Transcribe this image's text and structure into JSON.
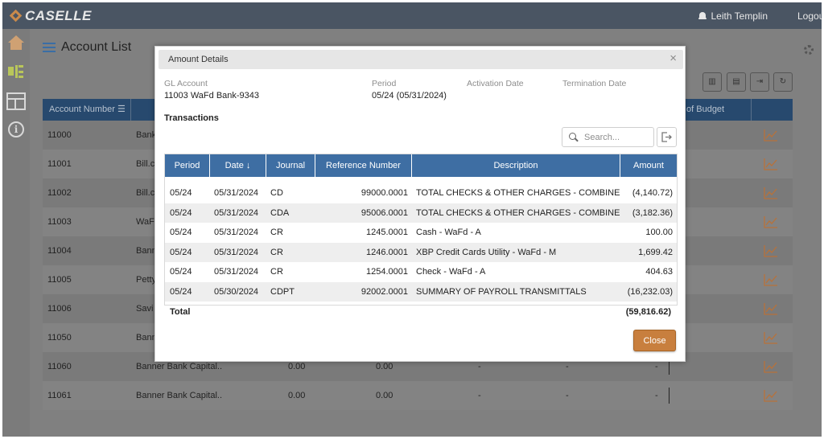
{
  "app": {
    "brand": "CASELLE",
    "user_name": "Leith Templin",
    "logout_label": "Logout"
  },
  "page": {
    "title": "Account List"
  },
  "background_table": {
    "header_first": "Account Number",
    "header_budget": "hart of Budget",
    "rows": [
      {
        "account": "11000",
        "name": "Bank",
        "v1": "",
        "v2": "",
        "d1": "",
        "d2": "",
        "d3": ""
      },
      {
        "account": "11001",
        "name": "Bill.c",
        "v1": "",
        "v2": "",
        "d1": "",
        "d2": "",
        "d3": ""
      },
      {
        "account": "11002",
        "name": "Bill.c",
        "v1": "",
        "v2": "",
        "d1": "",
        "d2": "",
        "d3": ""
      },
      {
        "account": "11003",
        "name": "WaFd",
        "v1": "",
        "v2": "",
        "d1": "",
        "d2": "",
        "d3": ""
      },
      {
        "account": "11004",
        "name": "Bann",
        "v1": "",
        "v2": "",
        "d1": "",
        "d2": "",
        "d3": ""
      },
      {
        "account": "11005",
        "name": "Petty",
        "v1": "",
        "v2": "",
        "d1": "",
        "d2": "",
        "d3": ""
      },
      {
        "account": "11006",
        "name": "Savi",
        "v1": "",
        "v2": "",
        "d1": "",
        "d2": "",
        "d3": ""
      },
      {
        "account": "11050",
        "name": "Bann",
        "v1": "",
        "v2": "",
        "d1": "",
        "d2": "",
        "d3": ""
      },
      {
        "account": "11060",
        "name": "Banner Bank Capital...",
        "v1": "0.00",
        "v2": "0.00",
        "d1": "-",
        "d2": "-",
        "d3": "-"
      },
      {
        "account": "11061",
        "name": "Banner Bank Capital...",
        "v1": "0.00",
        "v2": "0.00",
        "d1": "-",
        "d2": "-",
        "d3": "-"
      }
    ]
  },
  "modal": {
    "title": "Amount Details",
    "close_x": "×",
    "gl_account_label": "GL Account",
    "gl_account_value": "11003 WaFd Bank-9343",
    "period_label": "Period",
    "period_value": "05/24 (05/31/2024)",
    "activation_label": "Activation Date",
    "termination_label": "Termination Date",
    "section_title": "Transactions",
    "search_placeholder": "Search...",
    "columns": {
      "period": "Period",
      "date": "Date ↓",
      "journal": "Journal",
      "reference": "Reference Number",
      "description": "Description",
      "amount": "Amount"
    },
    "transactions": [
      {
        "period": "05/24",
        "date": "05/31/2024",
        "journal": "CD",
        "reference": "99000.0001",
        "description": "TOTAL CHECKS & OTHER CHARGES - COMBINED",
        "amount": "(4,140.72)"
      },
      {
        "period": "05/24",
        "date": "05/31/2024",
        "journal": "CDA",
        "reference": "95006.0001",
        "description": "TOTAL CHECKS & OTHER CHARGES - COMBINED",
        "amount": "(3,182.36)"
      },
      {
        "period": "05/24",
        "date": "05/31/2024",
        "journal": "CR",
        "reference": "1245.0001",
        "description": "Cash - WaFd - A",
        "amount": "100.00"
      },
      {
        "period": "05/24",
        "date": "05/31/2024",
        "journal": "CR",
        "reference": "1246.0001",
        "description": "XBP Credit Cards Utility - WaFd - M",
        "amount": "1,699.42"
      },
      {
        "period": "05/24",
        "date": "05/31/2024",
        "journal": "CR",
        "reference": "1254.0001",
        "description": "Check - WaFd - A",
        "amount": "404.63"
      },
      {
        "period": "05/24",
        "date": "05/30/2024",
        "journal": "CDPT",
        "reference": "92002.0001",
        "description": "SUMMARY OF PAYROLL TRANSMITTALS",
        "amount": "(16,232.03)"
      }
    ],
    "total_label": "Total",
    "total_value": "(59,816.62)",
    "close_button": "Close"
  }
}
